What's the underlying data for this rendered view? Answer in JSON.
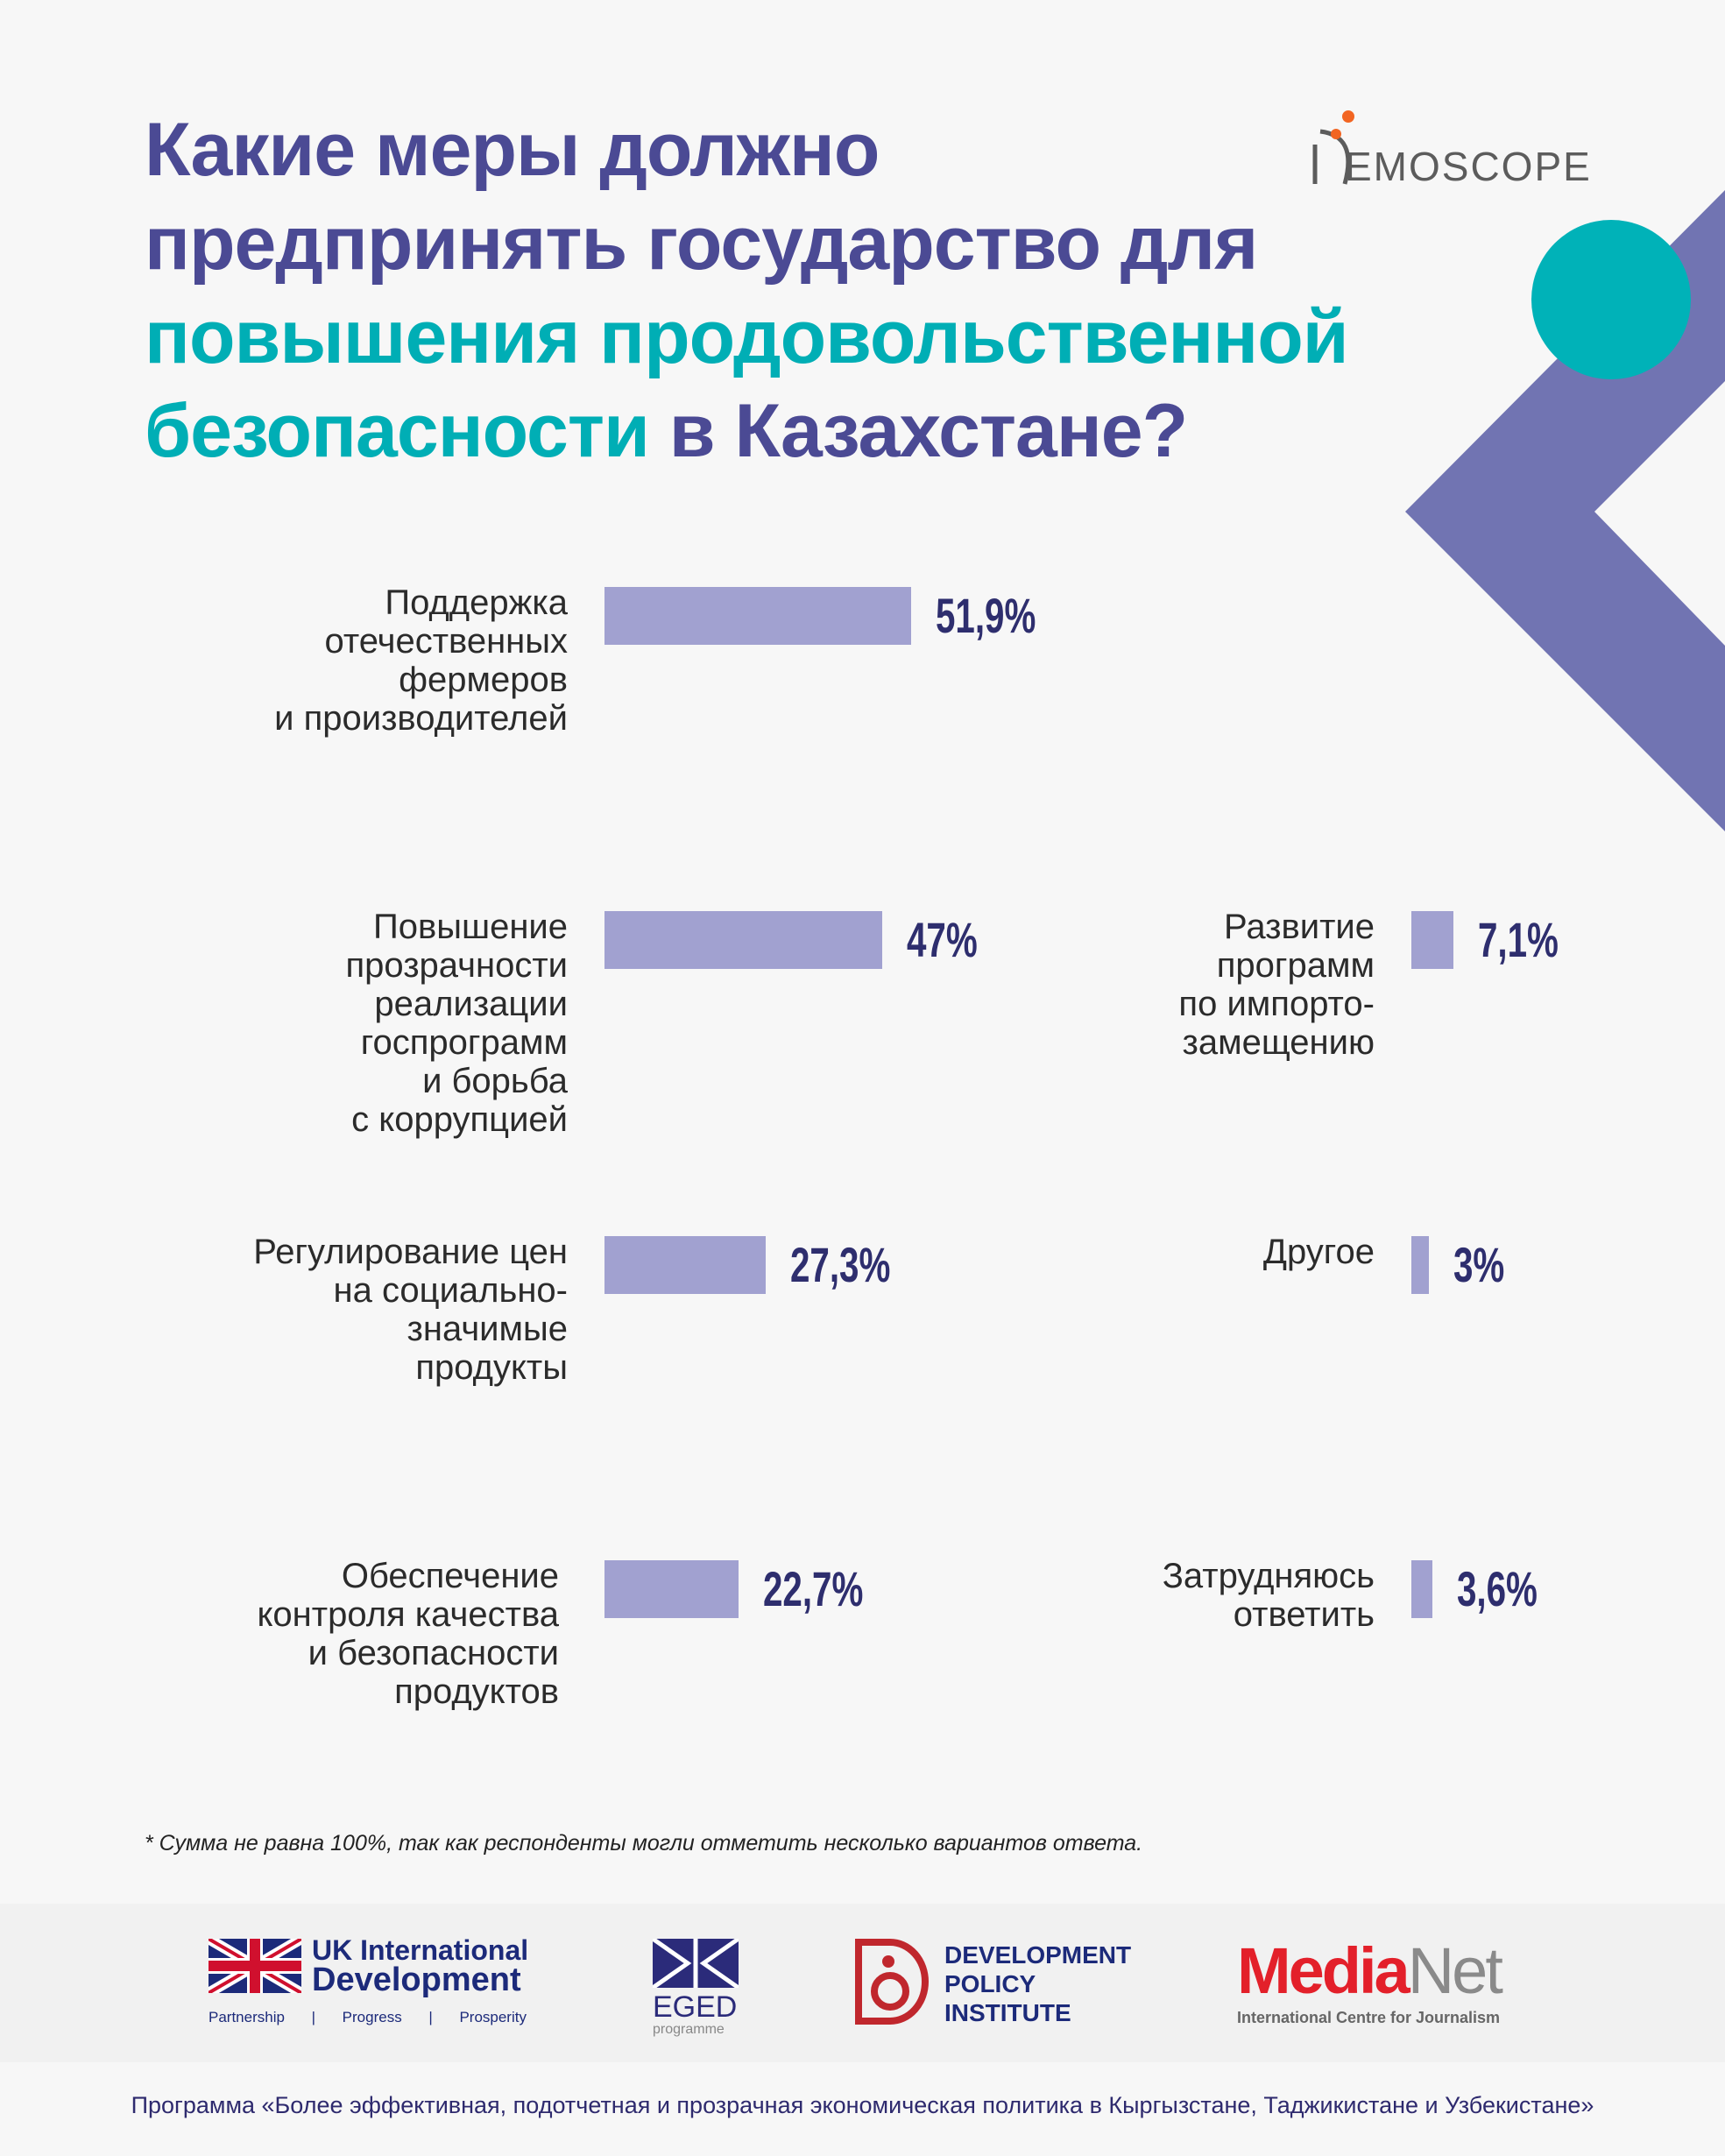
{
  "title": {
    "line1": "Какие меры должно",
    "line2": "предпринять государство для",
    "line3": "повышения продовольственной",
    "line4a": "безопасности",
    "line4b": " в Казахстане?"
  },
  "brand": {
    "logo": "DEMOSCOPE",
    "logo_text": "EMOSCOPE"
  },
  "chart_data": {
    "type": "bar",
    "title": "Какие меры должно предпринять государство для повышения продовольственной безопасности в Казахстане?",
    "unit": "%",
    "categories": [
      "Поддержка отечественных фермеров и производителей",
      "Повышение прозрачности реализации госпрограмм и борьба с коррупцией",
      "Регулирование цен на социально-значимые продукты",
      "Обеспечение контроля качества и безопасности продуктов",
      "Развитие программ по импорто-замещению",
      "Другое",
      "Затрудняюсь ответить"
    ],
    "values": [
      51.9,
      47,
      27.3,
      22.7,
      7.1,
      3,
      3.6
    ],
    "labels": [
      "51,9%",
      "47%",
      "27,3%",
      "22,7%",
      "7,1%",
      "3%",
      "3,6%"
    ],
    "label_lines": [
      [
        "Поддержка",
        "отечественных",
        "фермеров",
        "и производителей"
      ],
      [
        "Повышение",
        "прозрачности",
        "реализации",
        "госпрограмм",
        "и борьба",
        "с коррупцией"
      ],
      [
        "Регулирование цен",
        "на социально-",
        "значимые",
        "продукты"
      ],
      [
        "Обеспечение",
        "контроля качества",
        "и безопасности",
        "продуктов"
      ],
      [
        "Развитие",
        "программ",
        "по импорто-",
        "замещению"
      ],
      [
        "Другое"
      ],
      [
        "Затрудняюсь",
        "ответить"
      ]
    ],
    "bar_color": "#a1a1d0"
  },
  "footnote": "* Сумма не равна 100%, так как респонденты могли отметить несколько вариантов ответа.",
  "partners": {
    "uk": {
      "line1": "UK International",
      "line2": "Development",
      "tag1": "Partnership",
      "tag2": "Progress",
      "tag3": "Prosperity",
      "sep": "|"
    },
    "eged": {
      "name": "EGED",
      "sub": "programme"
    },
    "dpi": {
      "line1": "DEVELOPMENT",
      "line2": "POLICY",
      "line3": "INSTITUTE"
    },
    "medianet": {
      "media": "Media",
      "net": "Net",
      "sub": "International Centre for Journalism"
    }
  },
  "program": "Программа «Более эффективная, подотчетная и прозрачная экономическая политика в Кыргызстане, Таджикистане и Узбекистане»"
}
